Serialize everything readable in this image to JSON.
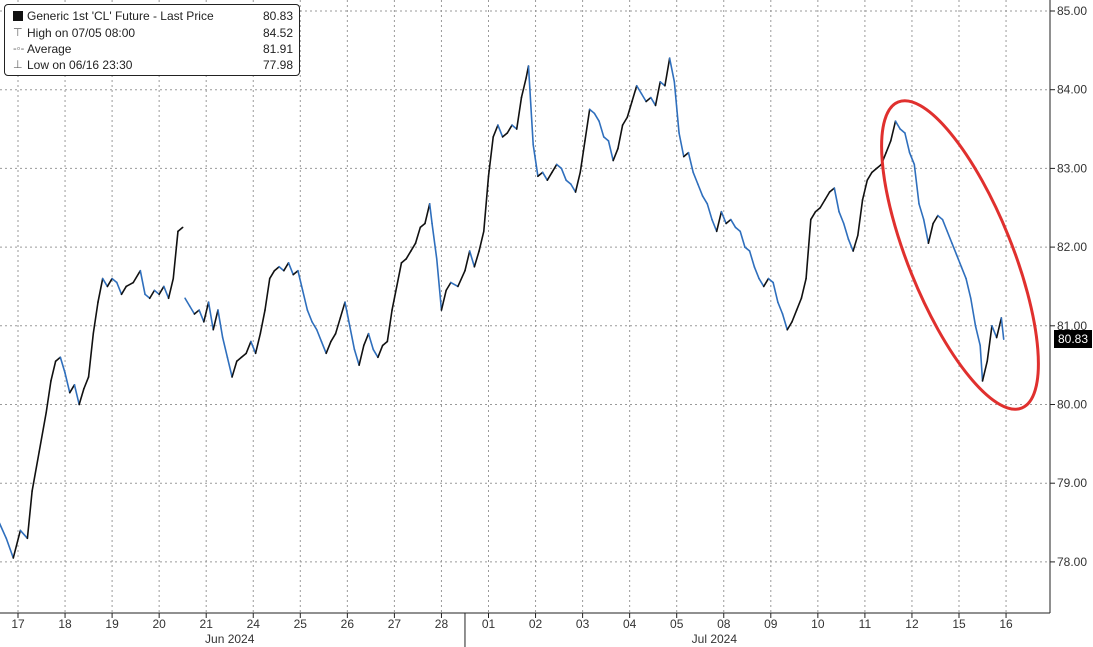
{
  "legend": {
    "title": "Generic 1st 'CL' Future - Last Price",
    "last": "80.83",
    "high_label": "High on 07/05 08:00",
    "high": "84.52",
    "avg_label": "Average",
    "avg": "81.91",
    "low_label": "Low on 06/16 23:30",
    "low": "77.98"
  },
  "last_price_tag": "80.83",
  "colors": {
    "line": "#111111",
    "line_down": "#2f6fbd",
    "highlight": "#e0302e",
    "grid": "#9a9a9a"
  },
  "chart_data": {
    "type": "line",
    "ylim": [
      77.35,
      85.1
    ],
    "yticks": [
      "78.00",
      "79.00",
      "80.00",
      "81.00",
      "82.00",
      "83.00",
      "84.00",
      "85.00"
    ],
    "ytick_values": [
      78,
      79,
      80,
      81,
      82,
      83,
      84,
      85
    ],
    "day_labels": [
      "17",
      "18",
      "19",
      "20",
      "21",
      "24",
      "25",
      "26",
      "27",
      "28",
      "01",
      "02",
      "03",
      "04",
      "05",
      "08",
      "09",
      "10",
      "11",
      "12",
      "15",
      "16"
    ],
    "month_labels": [
      {
        "label": "Jun 2024",
        "center_day": 4.5
      },
      {
        "label": "Jul 2024",
        "center_day": 14.8
      }
    ],
    "month_divider_day": 9.5,
    "x_range": [
      -0.4,
      21.2
    ],
    "series": [
      {
        "points": [
          [
            -0.4,
            78.5
          ],
          [
            -0.25,
            78.3
          ],
          [
            -0.1,
            78.05
          ],
          [
            0.05,
            78.4
          ],
          [
            0.2,
            78.3
          ],
          [
            0.3,
            78.9
          ],
          [
            0.45,
            79.4
          ],
          [
            0.6,
            79.9
          ],
          [
            0.7,
            80.3
          ],
          [
            0.8,
            80.55
          ],
          [
            0.9,
            80.6
          ],
          [
            1.0,
            80.4
          ],
          [
            1.1,
            80.15
          ],
          [
            1.2,
            80.25
          ],
          [
            1.3,
            80.0
          ],
          [
            1.4,
            80.2
          ],
          [
            1.5,
            80.35
          ],
          [
            1.6,
            80.9
          ],
          [
            1.7,
            81.3
          ],
          [
            1.8,
            81.6
          ],
          [
            1.9,
            81.5
          ],
          [
            2.0,
            81.6
          ],
          [
            2.1,
            81.55
          ],
          [
            2.2,
            81.4
          ],
          [
            2.3,
            81.5
          ],
          [
            2.45,
            81.55
          ],
          [
            2.6,
            81.7
          ],
          [
            2.7,
            81.4
          ],
          [
            2.8,
            81.35
          ],
          [
            2.9,
            81.45
          ],
          [
            3.0,
            81.4
          ],
          [
            3.1,
            81.5
          ],
          [
            3.2,
            81.35
          ],
          [
            3.3,
            81.6
          ],
          [
            3.4,
            82.2
          ],
          [
            3.5,
            82.25
          ]
        ]
      },
      {
        "points": [
          [
            3.55,
            81.35
          ],
          [
            3.65,
            81.25
          ],
          [
            3.75,
            81.15
          ],
          [
            3.85,
            81.2
          ],
          [
            3.95,
            81.05
          ],
          [
            4.05,
            81.3
          ],
          [
            4.15,
            80.95
          ],
          [
            4.25,
            81.2
          ],
          [
            4.35,
            80.85
          ],
          [
            4.45,
            80.6
          ],
          [
            4.55,
            80.35
          ],
          [
            4.65,
            80.55
          ],
          [
            4.75,
            80.6
          ],
          [
            4.85,
            80.65
          ],
          [
            4.95,
            80.8
          ],
          [
            5.05,
            80.65
          ],
          [
            5.15,
            80.9
          ],
          [
            5.25,
            81.2
          ],
          [
            5.35,
            81.6
          ],
          [
            5.45,
            81.7
          ],
          [
            5.55,
            81.75
          ],
          [
            5.65,
            81.7
          ],
          [
            5.75,
            81.8
          ],
          [
            5.85,
            81.65
          ],
          [
            5.95,
            81.7
          ],
          [
            6.05,
            81.45
          ],
          [
            6.15,
            81.2
          ],
          [
            6.25,
            81.05
          ],
          [
            6.35,
            80.95
          ],
          [
            6.45,
            80.8
          ],
          [
            6.55,
            80.65
          ],
          [
            6.65,
            80.8
          ],
          [
            6.75,
            80.9
          ],
          [
            6.85,
            81.1
          ],
          [
            6.95,
            81.3
          ],
          [
            7.05,
            81.0
          ],
          [
            7.15,
            80.7
          ],
          [
            7.25,
            80.5
          ],
          [
            7.35,
            80.75
          ],
          [
            7.45,
            80.9
          ],
          [
            7.55,
            80.7
          ],
          [
            7.65,
            80.6
          ],
          [
            7.75,
            80.75
          ],
          [
            7.85,
            80.8
          ],
          [
            7.95,
            81.2
          ],
          [
            8.05,
            81.5
          ],
          [
            8.15,
            81.8
          ],
          [
            8.25,
            81.85
          ],
          [
            8.35,
            81.95
          ],
          [
            8.45,
            82.05
          ],
          [
            8.55,
            82.25
          ],
          [
            8.65,
            82.3
          ],
          [
            8.75,
            82.55
          ],
          [
            8.8,
            82.3
          ],
          [
            8.9,
            81.85
          ],
          [
            9.0,
            81.2
          ],
          [
            9.1,
            81.45
          ],
          [
            9.2,
            81.55
          ],
          [
            9.35,
            81.5
          ],
          [
            9.5,
            81.7
          ],
          [
            9.6,
            81.95
          ],
          [
            9.7,
            81.75
          ],
          [
            9.8,
            81.95
          ],
          [
            9.9,
            82.2
          ],
          [
            10.0,
            82.9
          ],
          [
            10.1,
            83.4
          ],
          [
            10.2,
            83.55
          ],
          [
            10.3,
            83.4
          ],
          [
            10.4,
            83.45
          ],
          [
            10.5,
            83.55
          ],
          [
            10.6,
            83.5
          ],
          [
            10.7,
            83.9
          ],
          [
            10.8,
            84.15
          ],
          [
            10.85,
            84.3
          ],
          [
            10.95,
            83.3
          ],
          [
            11.05,
            82.9
          ],
          [
            11.15,
            82.95
          ],
          [
            11.25,
            82.85
          ],
          [
            11.35,
            82.95
          ],
          [
            11.45,
            83.05
          ],
          [
            11.55,
            83.0
          ],
          [
            11.65,
            82.85
          ],
          [
            11.75,
            82.8
          ],
          [
            11.85,
            82.7
          ],
          [
            11.95,
            82.95
          ],
          [
            12.05,
            83.35
          ],
          [
            12.15,
            83.75
          ],
          [
            12.25,
            83.7
          ],
          [
            12.35,
            83.6
          ],
          [
            12.45,
            83.4
          ],
          [
            12.55,
            83.35
          ],
          [
            12.65,
            83.1
          ],
          [
            12.75,
            83.25
          ],
          [
            12.85,
            83.55
          ],
          [
            12.95,
            83.65
          ],
          [
            13.05,
            83.85
          ],
          [
            13.15,
            84.05
          ],
          [
            13.25,
            83.95
          ],
          [
            13.35,
            83.85
          ],
          [
            13.45,
            83.9
          ],
          [
            13.55,
            83.8
          ],
          [
            13.65,
            84.1
          ],
          [
            13.75,
            84.05
          ],
          [
            13.85,
            84.4
          ],
          [
            13.95,
            84.1
          ],
          [
            14.05,
            83.45
          ],
          [
            14.15,
            83.15
          ],
          [
            14.25,
            83.2
          ],
          [
            14.35,
            82.95
          ],
          [
            14.45,
            82.8
          ],
          [
            14.55,
            82.65
          ],
          [
            14.65,
            82.55
          ],
          [
            14.75,
            82.35
          ],
          [
            14.85,
            82.2
          ],
          [
            14.95,
            82.45
          ],
          [
            15.05,
            82.3
          ],
          [
            15.15,
            82.35
          ],
          [
            15.25,
            82.25
          ],
          [
            15.35,
            82.2
          ],
          [
            15.45,
            82.0
          ],
          [
            15.55,
            81.95
          ],
          [
            15.65,
            81.75
          ],
          [
            15.75,
            81.6
          ],
          [
            15.85,
            81.5
          ],
          [
            15.95,
            81.6
          ],
          [
            16.05,
            81.55
          ],
          [
            16.15,
            81.3
          ],
          [
            16.25,
            81.15
          ],
          [
            16.35,
            80.95
          ],
          [
            16.45,
            81.05
          ],
          [
            16.55,
            81.2
          ],
          [
            16.65,
            81.35
          ],
          [
            16.75,
            81.6
          ],
          [
            16.85,
            82.35
          ],
          [
            16.95,
            82.45
          ],
          [
            17.05,
            82.5
          ],
          [
            17.15,
            82.6
          ],
          [
            17.25,
            82.7
          ],
          [
            17.35,
            82.75
          ],
          [
            17.45,
            82.45
          ],
          [
            17.55,
            82.3
          ],
          [
            17.65,
            82.1
          ],
          [
            17.75,
            81.95
          ],
          [
            17.85,
            82.15
          ],
          [
            17.95,
            82.6
          ],
          [
            18.05,
            82.85
          ],
          [
            18.15,
            82.95
          ],
          [
            18.25,
            83.0
          ],
          [
            18.35,
            83.05
          ],
          [
            18.45,
            83.2
          ],
          [
            18.55,
            83.35
          ],
          [
            18.65,
            83.6
          ],
          [
            18.75,
            83.5
          ],
          [
            18.85,
            83.45
          ],
          [
            18.95,
            83.2
          ],
          [
            19.05,
            83.05
          ],
          [
            19.15,
            82.55
          ],
          [
            19.25,
            82.35
          ],
          [
            19.35,
            82.05
          ],
          [
            19.45,
            82.3
          ],
          [
            19.55,
            82.4
          ],
          [
            19.65,
            82.35
          ],
          [
            19.75,
            82.2
          ],
          [
            19.85,
            82.05
          ],
          [
            19.95,
            81.9
          ],
          [
            20.05,
            81.75
          ],
          [
            20.15,
            81.6
          ],
          [
            20.25,
            81.35
          ],
          [
            20.35,
            81.0
          ],
          [
            20.45,
            80.75
          ],
          [
            20.5,
            80.3
          ],
          [
            20.6,
            80.55
          ],
          [
            20.7,
            81.0
          ],
          [
            20.8,
            80.85
          ],
          [
            20.9,
            81.1
          ],
          [
            20.95,
            80.83
          ]
        ]
      }
    ]
  }
}
